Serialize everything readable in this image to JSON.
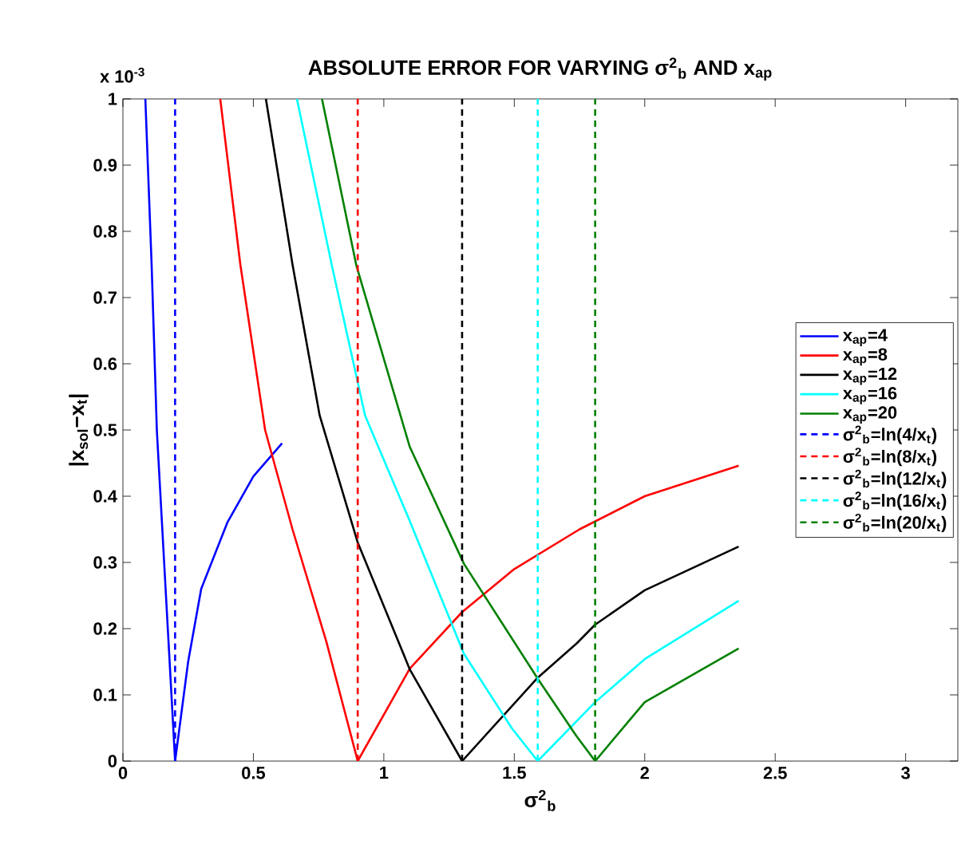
{
  "chart_data": {
    "type": "line",
    "title": "ABSOLUTE ERROR FOR VARYING σ$^{2}$$_{b}$ AND x$_{ap}$",
    "xlabel": "σ$^{2}$$_{b}$",
    "ylabel": "|x$_{sol}$−x$_{t}$|",
    "annotations": [
      "x 10$^{-3}$"
    ],
    "xlim": [
      0,
      3.2
    ],
    "ylim": [
      0,
      1
    ],
    "xticks": [
      0,
      0.5,
      1,
      1.5,
      2,
      2.5,
      3
    ],
    "yticks": [
      0,
      0.1,
      0.2,
      0.3,
      0.4,
      0.5,
      0.6,
      0.7,
      0.8,
      0.9,
      1
    ],
    "legend": "right",
    "grid": false,
    "marker": "none",
    "series": [
      {
        "name": "x$_{ap}$=4",
        "color": "#0000ff",
        "line_style": "solid",
        "x": [
          0.086,
          0.11,
          0.13,
          0.165,
          0.2,
          0.25,
          0.3,
          0.4,
          0.5,
          0.61
        ],
        "values": [
          1,
          0.75,
          0.5,
          0.25,
          0,
          0.15,
          0.26,
          0.36,
          0.43,
          0.48
        ]
      },
      {
        "name": "x$_{ap}$=8",
        "color": "#ff0000",
        "line_style": "solid",
        "x": [
          0.373,
          0.45,
          0.545,
          0.65,
          0.78,
          0.9,
          1.1,
          1.3,
          1.5,
          1.75,
          2.0,
          2.36
        ],
        "values": [
          1,
          0.75,
          0.5,
          0.35,
          0.18,
          0,
          0.14,
          0.225,
          0.29,
          0.35,
          0.4,
          0.446
        ]
      },
      {
        "name": "x$_{ap}$=12",
        "color": "#000000",
        "line_style": "solid",
        "x": [
          0.548,
          0.65,
          0.754,
          0.9,
          1.1,
          1.3,
          1.59,
          1.74,
          1.81,
          2.0,
          2.36
        ],
        "values": [
          1,
          0.75,
          0.522,
          0.33,
          0.138,
          0,
          0.126,
          0.178,
          0.206,
          0.258,
          0.324
        ]
      },
      {
        "name": "x$_{ap}$=16",
        "color": "#00ffff",
        "line_style": "solid",
        "x": [
          0.667,
          0.8,
          0.928,
          1.1,
          1.307,
          1.49,
          1.59,
          1.81,
          2.0,
          2.36
        ],
        "values": [
          1,
          0.75,
          0.522,
          0.362,
          0.162,
          0.05,
          0,
          0.089,
          0.154,
          0.242
        ]
      },
      {
        "name": "x$_{ap}$=20",
        "color": "#008000",
        "line_style": "solid",
        "x": [
          0.763,
          0.895,
          1.099,
          1.307,
          1.594,
          1.738,
          1.81,
          2.0,
          2.36
        ],
        "values": [
          1,
          0.748,
          0.475,
          0.298,
          0.122,
          0.038,
          0,
          0.089,
          0.17
        ]
      },
      {
        "name": "σ$^{2}$$_{b}$=ln(4/x$_{t}$)",
        "color": "#0000ff",
        "line_style": "dashed",
        "x": [
          0.2,
          0.2
        ],
        "values": [
          0,
          1
        ]
      },
      {
        "name": "σ$^{2}$$_{b}$=ln(8/x$_{t}$)",
        "color": "#ff0000",
        "line_style": "dashed",
        "x": [
          0.9,
          0.9
        ],
        "values": [
          0,
          1
        ]
      },
      {
        "name": "σ$^{2}$$_{b}$=ln(12/x$_{t}$)",
        "color": "#000000",
        "line_style": "dashed",
        "x": [
          1.3,
          1.3
        ],
        "values": [
          0,
          1
        ]
      },
      {
        "name": "σ$^{2}$$_{b}$=ln(16/x$_{t}$)",
        "color": "#00ffff",
        "line_style": "dashed",
        "x": [
          1.59,
          1.59
        ],
        "values": [
          0,
          1
        ]
      },
      {
        "name": "σ$^{2}$$_{b}$=ln(20/x$_{t}$)",
        "color": "#008000",
        "line_style": "dashed",
        "x": [
          1.81,
          1.81
        ],
        "values": [
          0,
          1
        ]
      }
    ]
  }
}
